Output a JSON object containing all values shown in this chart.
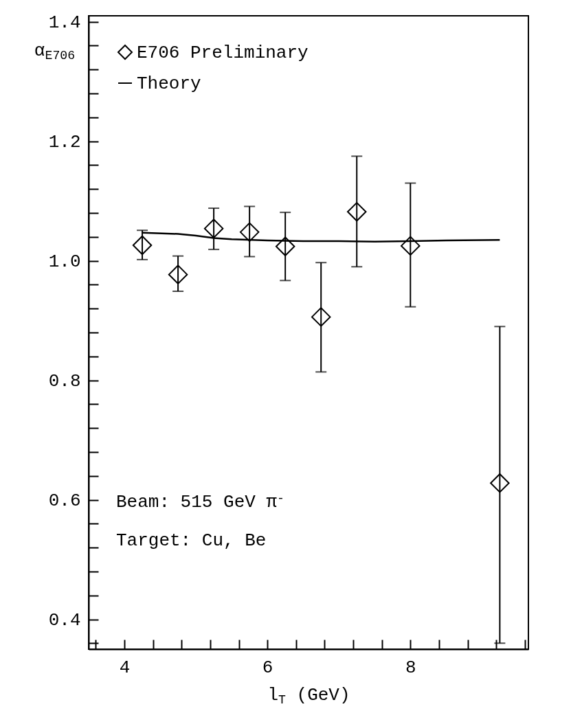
{
  "chart_data": {
    "type": "scatter",
    "xlabel": "l$_{T}$ (GeV)",
    "ylabel": "α$_{E706}$",
    "xlim": [
      3.5,
      9.65
    ],
    "ylim": [
      0.35,
      1.41
    ],
    "xticks": [
      {
        "value": 3.6,
        "label": null
      },
      4,
      {
        "value": 4.4,
        "label": null
      },
      {
        "value": 4.8,
        "label": null
      },
      {
        "value": 5.2,
        "label": null
      },
      {
        "value": 5.6,
        "label": null
      },
      6,
      {
        "value": 6.4,
        "label": null
      },
      {
        "value": 6.8,
        "label": null
      },
      {
        "value": 7.2,
        "label": null
      },
      {
        "value": 7.6,
        "label": null
      },
      8,
      {
        "value": 8.4,
        "label": null
      },
      {
        "value": 8.8,
        "label": null
      },
      {
        "value": 9.2,
        "label": null
      },
      {
        "value": 9.6,
        "label": null
      }
    ],
    "yticks": [
      {
        "value": 0.36,
        "label": null
      },
      0.4,
      {
        "value": 0.44,
        "label": null
      },
      {
        "value": 0.48,
        "label": null
      },
      {
        "value": 0.52,
        "label": null
      },
      {
        "value": 0.56,
        "label": null
      },
      0.6,
      {
        "value": 0.64,
        "label": null
      },
      {
        "value": 0.68,
        "label": null
      },
      {
        "value": 0.72,
        "label": null
      },
      {
        "value": 0.76,
        "label": null
      },
      0.8,
      {
        "value": 0.84,
        "label": null
      },
      {
        "value": 0.88,
        "label": null
      },
      {
        "value": 0.92,
        "label": null
      },
      {
        "value": 0.96,
        "label": null
      },
      {
        "value": 1.0,
        "label": "1.0"
      },
      {
        "value": 1.04,
        "label": null
      },
      {
        "value": 1.08,
        "label": null
      },
      {
        "value": 1.12,
        "label": null
      },
      {
        "value": 1.16,
        "label": null
      },
      1.2,
      {
        "value": 1.24,
        "label": null
      },
      {
        "value": 1.28,
        "label": null
      },
      {
        "value": 1.32,
        "label": null
      },
      {
        "value": 1.36,
        "label": null
      },
      1.4
    ],
    "grid": false,
    "legend": "top left",
    "marker": "diamond",
    "series": [
      {
        "name": "E706 Preliminary",
        "color": "#000000",
        "x": [
          4.25,
          4.75,
          5.25,
          5.75,
          6.25,
          6.75,
          7.25,
          8.0,
          9.25
        ],
        "values": [
          1.026,
          0.977,
          1.054,
          1.048,
          1.024,
          0.906,
          1.082,
          1.025,
          0.628
        ],
        "errors": [
          [
            1.002,
            1.051
          ],
          [
            0.949,
            1.008
          ],
          [
            1.019,
            1.088
          ],
          [
            1.007,
            1.091
          ],
          [
            0.967,
            1.081
          ],
          [
            0.814,
            0.997
          ],
          [
            0.99,
            1.175
          ],
          [
            0.923,
            1.13
          ],
          [
            0.36,
            0.89
          ]
        ]
      },
      {
        "name": "Theory",
        "type": "line",
        "color": "#000000",
        "marker": "none",
        "line_style": "solid",
        "x": [
          4.25,
          4.75,
          5.0,
          5.25,
          5.5,
          6.0,
          6.5,
          7.0,
          7.5,
          8.0,
          8.5,
          9.25
        ],
        "values": [
          1.047,
          1.045,
          1.042,
          1.038,
          1.036,
          1.034,
          1.033,
          1.033,
          1.032,
          1.033,
          1.034,
          1.035
        ]
      }
    ],
    "annotations": [
      "Beam: 515 GeV π$^{-}$",
      "Target: Cu, Be"
    ]
  }
}
